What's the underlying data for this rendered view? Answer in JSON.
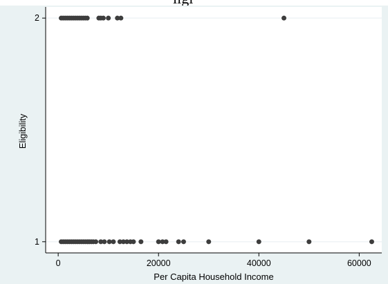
{
  "top_fragment": "ligi",
  "chart_data": {
    "type": "scatter",
    "title": "",
    "xlabel": "Per Capita Household Income",
    "ylabel": "Eligibility",
    "xlim": [
      -2500,
      64500
    ],
    "ylim": [
      0.95,
      2.05
    ],
    "xticks": [
      0,
      20000,
      40000,
      60000
    ],
    "xtick_labels": [
      "0",
      "20000",
      "40000",
      "60000"
    ],
    "yticks": [
      1,
      2
    ],
    "ytick_labels": [
      "1",
      "2"
    ],
    "grid": "horizontal at y-ticks",
    "legend": "none",
    "marker_color": "#3d3d3d",
    "plot_background": "#ffffff",
    "outer_background": "#eaf2f3",
    "series": [
      {
        "points": [
          [
            600,
            2
          ],
          [
            1000,
            2
          ],
          [
            1400,
            2
          ],
          [
            1800,
            2
          ],
          [
            2200,
            2
          ],
          [
            2600,
            2
          ],
          [
            3000,
            2
          ],
          [
            3400,
            2
          ],
          [
            3800,
            2
          ],
          [
            4200,
            2
          ],
          [
            4600,
            2
          ],
          [
            5000,
            2
          ],
          [
            5400,
            2
          ],
          [
            5800,
            2
          ],
          [
            8100,
            2
          ],
          [
            8500,
            2
          ],
          [
            9000,
            2
          ],
          [
            10000,
            2
          ],
          [
            11800,
            2
          ],
          [
            12500,
            2
          ],
          [
            45000,
            2
          ],
          [
            600,
            1
          ],
          [
            1000,
            1
          ],
          [
            1400,
            1
          ],
          [
            1800,
            1
          ],
          [
            2200,
            1
          ],
          [
            2600,
            1
          ],
          [
            3000,
            1
          ],
          [
            3400,
            1
          ],
          [
            3800,
            1
          ],
          [
            4200,
            1
          ],
          [
            4600,
            1
          ],
          [
            5000,
            1
          ],
          [
            5400,
            1
          ],
          [
            5800,
            1
          ],
          [
            6200,
            1
          ],
          [
            6600,
            1
          ],
          [
            7000,
            1
          ],
          [
            7500,
            1
          ],
          [
            8500,
            1
          ],
          [
            9200,
            1
          ],
          [
            10200,
            1
          ],
          [
            11000,
            1
          ],
          [
            12300,
            1
          ],
          [
            13000,
            1
          ],
          [
            13700,
            1
          ],
          [
            14400,
            1
          ],
          [
            15000,
            1
          ],
          [
            16500,
            1
          ],
          [
            20000,
            1
          ],
          [
            20800,
            1
          ],
          [
            21500,
            1
          ],
          [
            24000,
            1
          ],
          [
            25000,
            1
          ],
          [
            30000,
            1
          ],
          [
            40000,
            1
          ],
          [
            50000,
            1
          ],
          [
            62500,
            1
          ]
        ]
      }
    ]
  }
}
